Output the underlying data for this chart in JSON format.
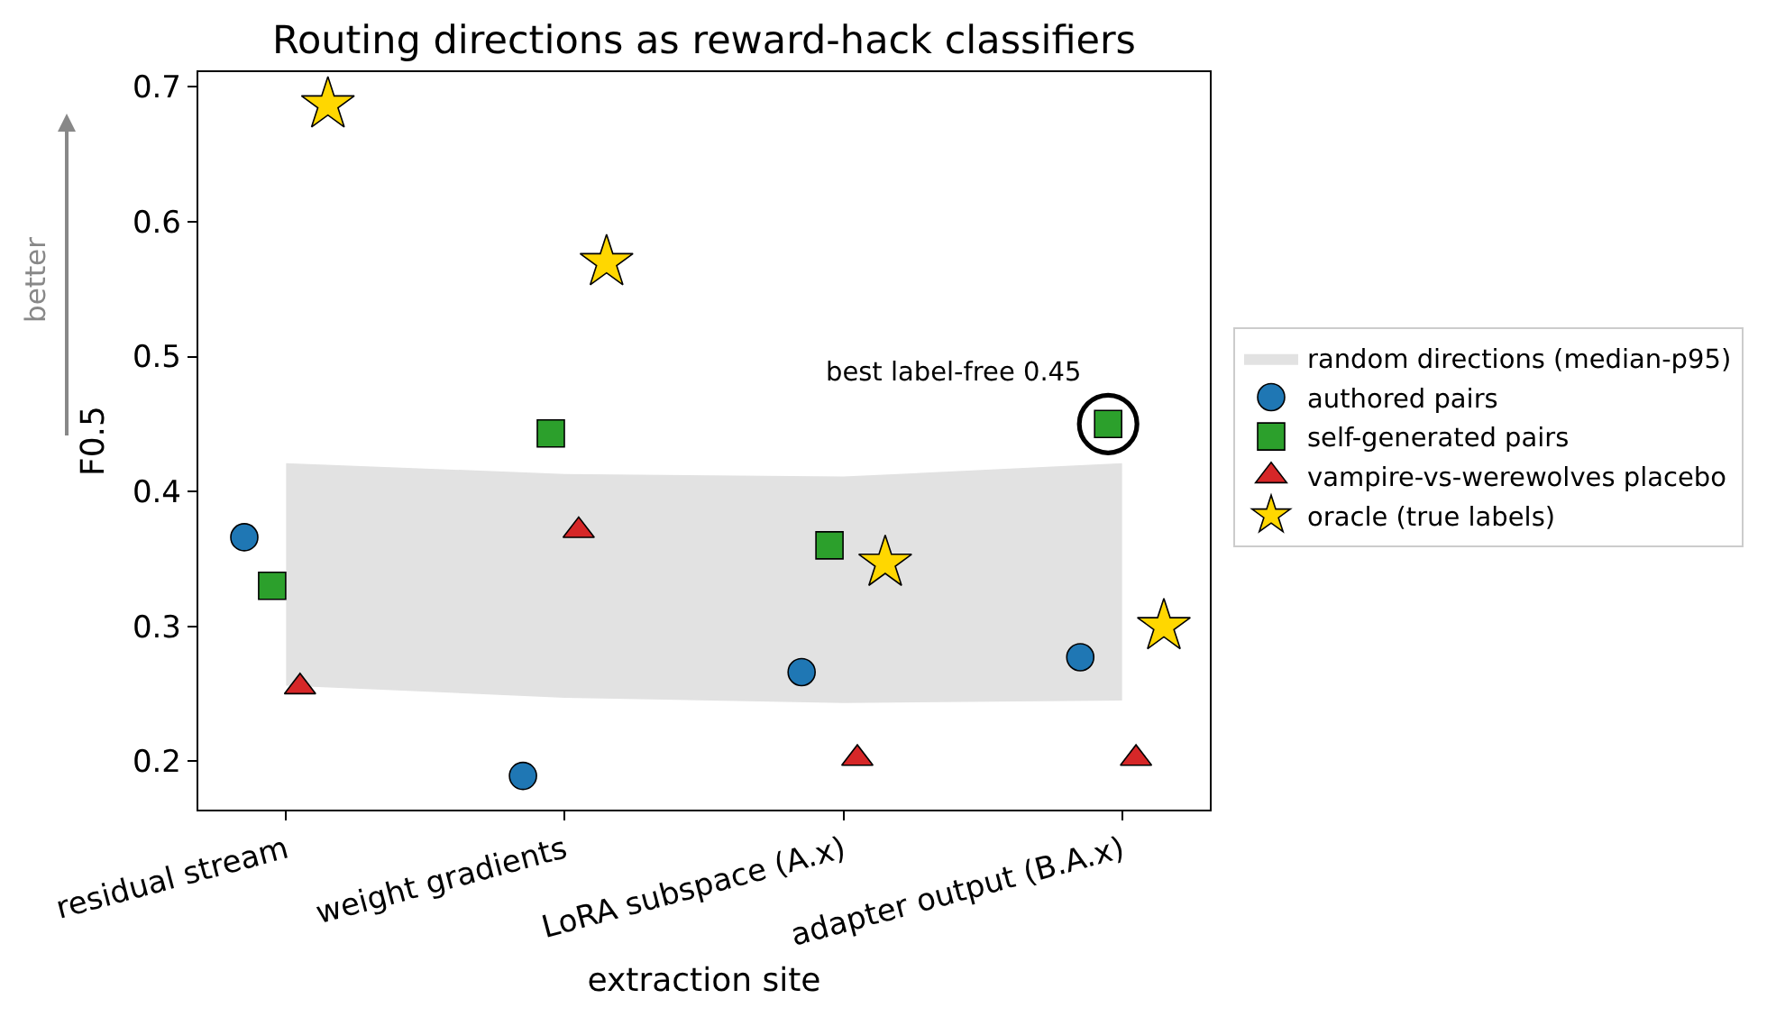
{
  "chart_data": {
    "type": "scatter",
    "title": "Routing directions as reward-hack classifiers",
    "xlabel": "extraction site",
    "ylabel": "F0.5",
    "categories": [
      "residual stream",
      "weight gradients",
      "LoRA subspace (A.x)",
      "adapter output (B.A.x)"
    ],
    "ylim": [
      0.164,
      0.711
    ],
    "yticks": [
      0.2,
      0.3,
      0.4,
      0.5,
      0.6,
      0.7
    ],
    "legend": "right",
    "series": [
      {
        "name": "random directions (median-p95)",
        "type": "area",
        "color": "#e2e2e2",
        "values": [
          null,
          null,
          null,
          null
        ],
        "lower": [
          0.256,
          0.247,
          0.243,
          0.245
        ],
        "upper": [
          0.421,
          0.413,
          0.411,
          0.421
        ]
      },
      {
        "name": "authored pairs",
        "color": "#1f77b4",
        "marker": "circle",
        "values": [
          0.366,
          0.189,
          0.266,
          0.277
        ]
      },
      {
        "name": "self-generated pairs",
        "color": "#2ca02c",
        "marker": "square",
        "values": [
          0.33,
          0.443,
          0.36,
          0.45
        ]
      },
      {
        "name": "vampire-vs-werewolves placebo",
        "color": "#d62728",
        "marker": "triangle",
        "values": [
          0.255,
          0.371,
          0.202,
          0.202
        ]
      },
      {
        "name": "oracle (true labels)",
        "color": "#ffd700",
        "marker": "star",
        "values": [
          0.687,
          0.57,
          0.347,
          0.3
        ]
      }
    ],
    "annotations": [
      {
        "text": "best label-free 0.45",
        "x": "adapter output (B.A.x)",
        "y": 0.45
      },
      "better"
    ]
  }
}
